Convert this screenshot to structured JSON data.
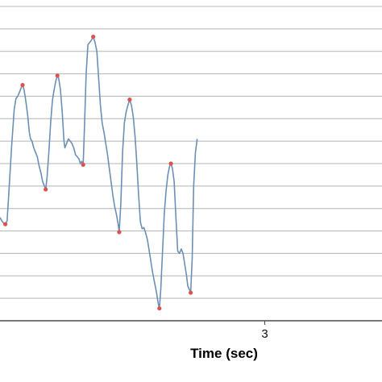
{
  "chart_data": {
    "type": "line",
    "title": "",
    "xlabel": "Time (sec)",
    "ylabel": "",
    "xlim": [
      1.51,
      3.66
    ],
    "ylim": [
      0,
      14
    ],
    "grid": true,
    "x_ticks": [
      {
        "value": 3,
        "label": "3"
      }
    ],
    "series": [
      {
        "color": "#6d8fb5",
        "points": [
          [
            1.51,
            4.6
          ],
          [
            1.52,
            4.45
          ],
          [
            1.53,
            4.35
          ],
          [
            1.54,
            4.3
          ],
          [
            1.55,
            4.45
          ],
          [
            1.56,
            5.7
          ],
          [
            1.575,
            7.7
          ],
          [
            1.59,
            9.4
          ],
          [
            1.6,
            9.9
          ],
          [
            1.61,
            10.0
          ],
          [
            1.62,
            10.2
          ],
          [
            1.63,
            10.4
          ],
          [
            1.637,
            10.5
          ],
          [
            1.645,
            10.3
          ],
          [
            1.655,
            9.8
          ],
          [
            1.665,
            9.2
          ],
          [
            1.675,
            8.4
          ],
          [
            1.682,
            8.1
          ],
          [
            1.69,
            8.0
          ],
          [
            1.7,
            7.7
          ],
          [
            1.71,
            7.5
          ],
          [
            1.72,
            7.3
          ],
          [
            1.73,
            6.9
          ],
          [
            1.74,
            6.6
          ],
          [
            1.75,
            6.2
          ],
          [
            1.76,
            6.0
          ],
          [
            1.767,
            5.85
          ],
          [
            1.775,
            6.4
          ],
          [
            1.785,
            7.5
          ],
          [
            1.795,
            8.8
          ],
          [
            1.805,
            9.8
          ],
          [
            1.815,
            10.3
          ],
          [
            1.825,
            10.7
          ],
          [
            1.833,
            10.92
          ],
          [
            1.84,
            10.8
          ],
          [
            1.85,
            10.3
          ],
          [
            1.86,
            9.3
          ],
          [
            1.87,
            8.0
          ],
          [
            1.875,
            7.7
          ],
          [
            1.885,
            7.9
          ],
          [
            1.895,
            8.1
          ],
          [
            1.905,
            8.0
          ],
          [
            1.915,
            7.9
          ],
          [
            1.925,
            7.7
          ],
          [
            1.935,
            7.4
          ],
          [
            1.945,
            7.3
          ],
          [
            1.955,
            7.2
          ],
          [
            1.962,
            7.0
          ],
          [
            1.97,
            7.1
          ],
          [
            1.978,
            6.95
          ],
          [
            1.985,
            8.5
          ],
          [
            1.995,
            11.0
          ],
          [
            2.005,
            12.3
          ],
          [
            2.015,
            12.4
          ],
          [
            2.025,
            12.5
          ],
          [
            2.035,
            12.65
          ],
          [
            2.045,
            12.4
          ],
          [
            2.055,
            12.0
          ],
          [
            2.065,
            10.8
          ],
          [
            2.075,
            9.6
          ],
          [
            2.085,
            8.8
          ],
          [
            2.095,
            8.4
          ],
          [
            2.105,
            7.9
          ],
          [
            2.115,
            7.4
          ],
          [
            2.125,
            6.8
          ],
          [
            2.135,
            6.2
          ],
          [
            2.145,
            5.6
          ],
          [
            2.155,
            5.1
          ],
          [
            2.165,
            4.75
          ],
          [
            2.175,
            4.3
          ],
          [
            2.181,
            3.95
          ],
          [
            2.19,
            5.2
          ],
          [
            2.2,
            7.5
          ],
          [
            2.21,
            8.8
          ],
          [
            2.22,
            9.3
          ],
          [
            2.23,
            9.6
          ],
          [
            2.24,
            9.85
          ],
          [
            2.25,
            9.6
          ],
          [
            2.26,
            9.1
          ],
          [
            2.27,
            8.2
          ],
          [
            2.28,
            7.0
          ],
          [
            2.29,
            5.6
          ],
          [
            2.3,
            4.4
          ],
          [
            2.31,
            4.1
          ],
          [
            2.32,
            4.15
          ],
          [
            2.33,
            3.9
          ],
          [
            2.34,
            3.6
          ],
          [
            2.35,
            3.1
          ],
          [
            2.36,
            2.6
          ],
          [
            2.37,
            2.1
          ],
          [
            2.38,
            1.7
          ],
          [
            2.39,
            1.3
          ],
          [
            2.4,
            0.8
          ],
          [
            2.407,
            0.55
          ],
          [
            2.415,
            1.4
          ],
          [
            2.425,
            3.1
          ],
          [
            2.435,
            4.8
          ],
          [
            2.445,
            5.8
          ],
          [
            2.455,
            6.5
          ],
          [
            2.465,
            6.9
          ],
          [
            2.472,
            7.0
          ],
          [
            2.48,
            6.8
          ],
          [
            2.49,
            6.2
          ],
          [
            2.5,
            4.6
          ],
          [
            2.51,
            3.1
          ],
          [
            2.52,
            3.0
          ],
          [
            2.53,
            3.2
          ],
          [
            2.54,
            3.0
          ],
          [
            2.55,
            2.5
          ],
          [
            2.56,
            2.0
          ],
          [
            2.567,
            1.55
          ],
          [
            2.575,
            1.4
          ],
          [
            2.583,
            1.25
          ],
          [
            2.592,
            2.8
          ],
          [
            2.6,
            6.0
          ],
          [
            2.61,
            7.5
          ],
          [
            2.62,
            8.1
          ]
        ],
        "markers": [
          [
            1.54,
            4.3
          ],
          [
            1.637,
            10.5
          ],
          [
            1.767,
            5.85
          ],
          [
            1.833,
            10.92
          ],
          [
            1.978,
            6.95
          ],
          [
            2.035,
            12.65
          ],
          [
            2.181,
            3.95
          ],
          [
            2.24,
            9.85
          ],
          [
            2.407,
            0.55
          ],
          [
            2.472,
            7.0
          ],
          [
            2.583,
            1.25
          ]
        ]
      }
    ]
  }
}
